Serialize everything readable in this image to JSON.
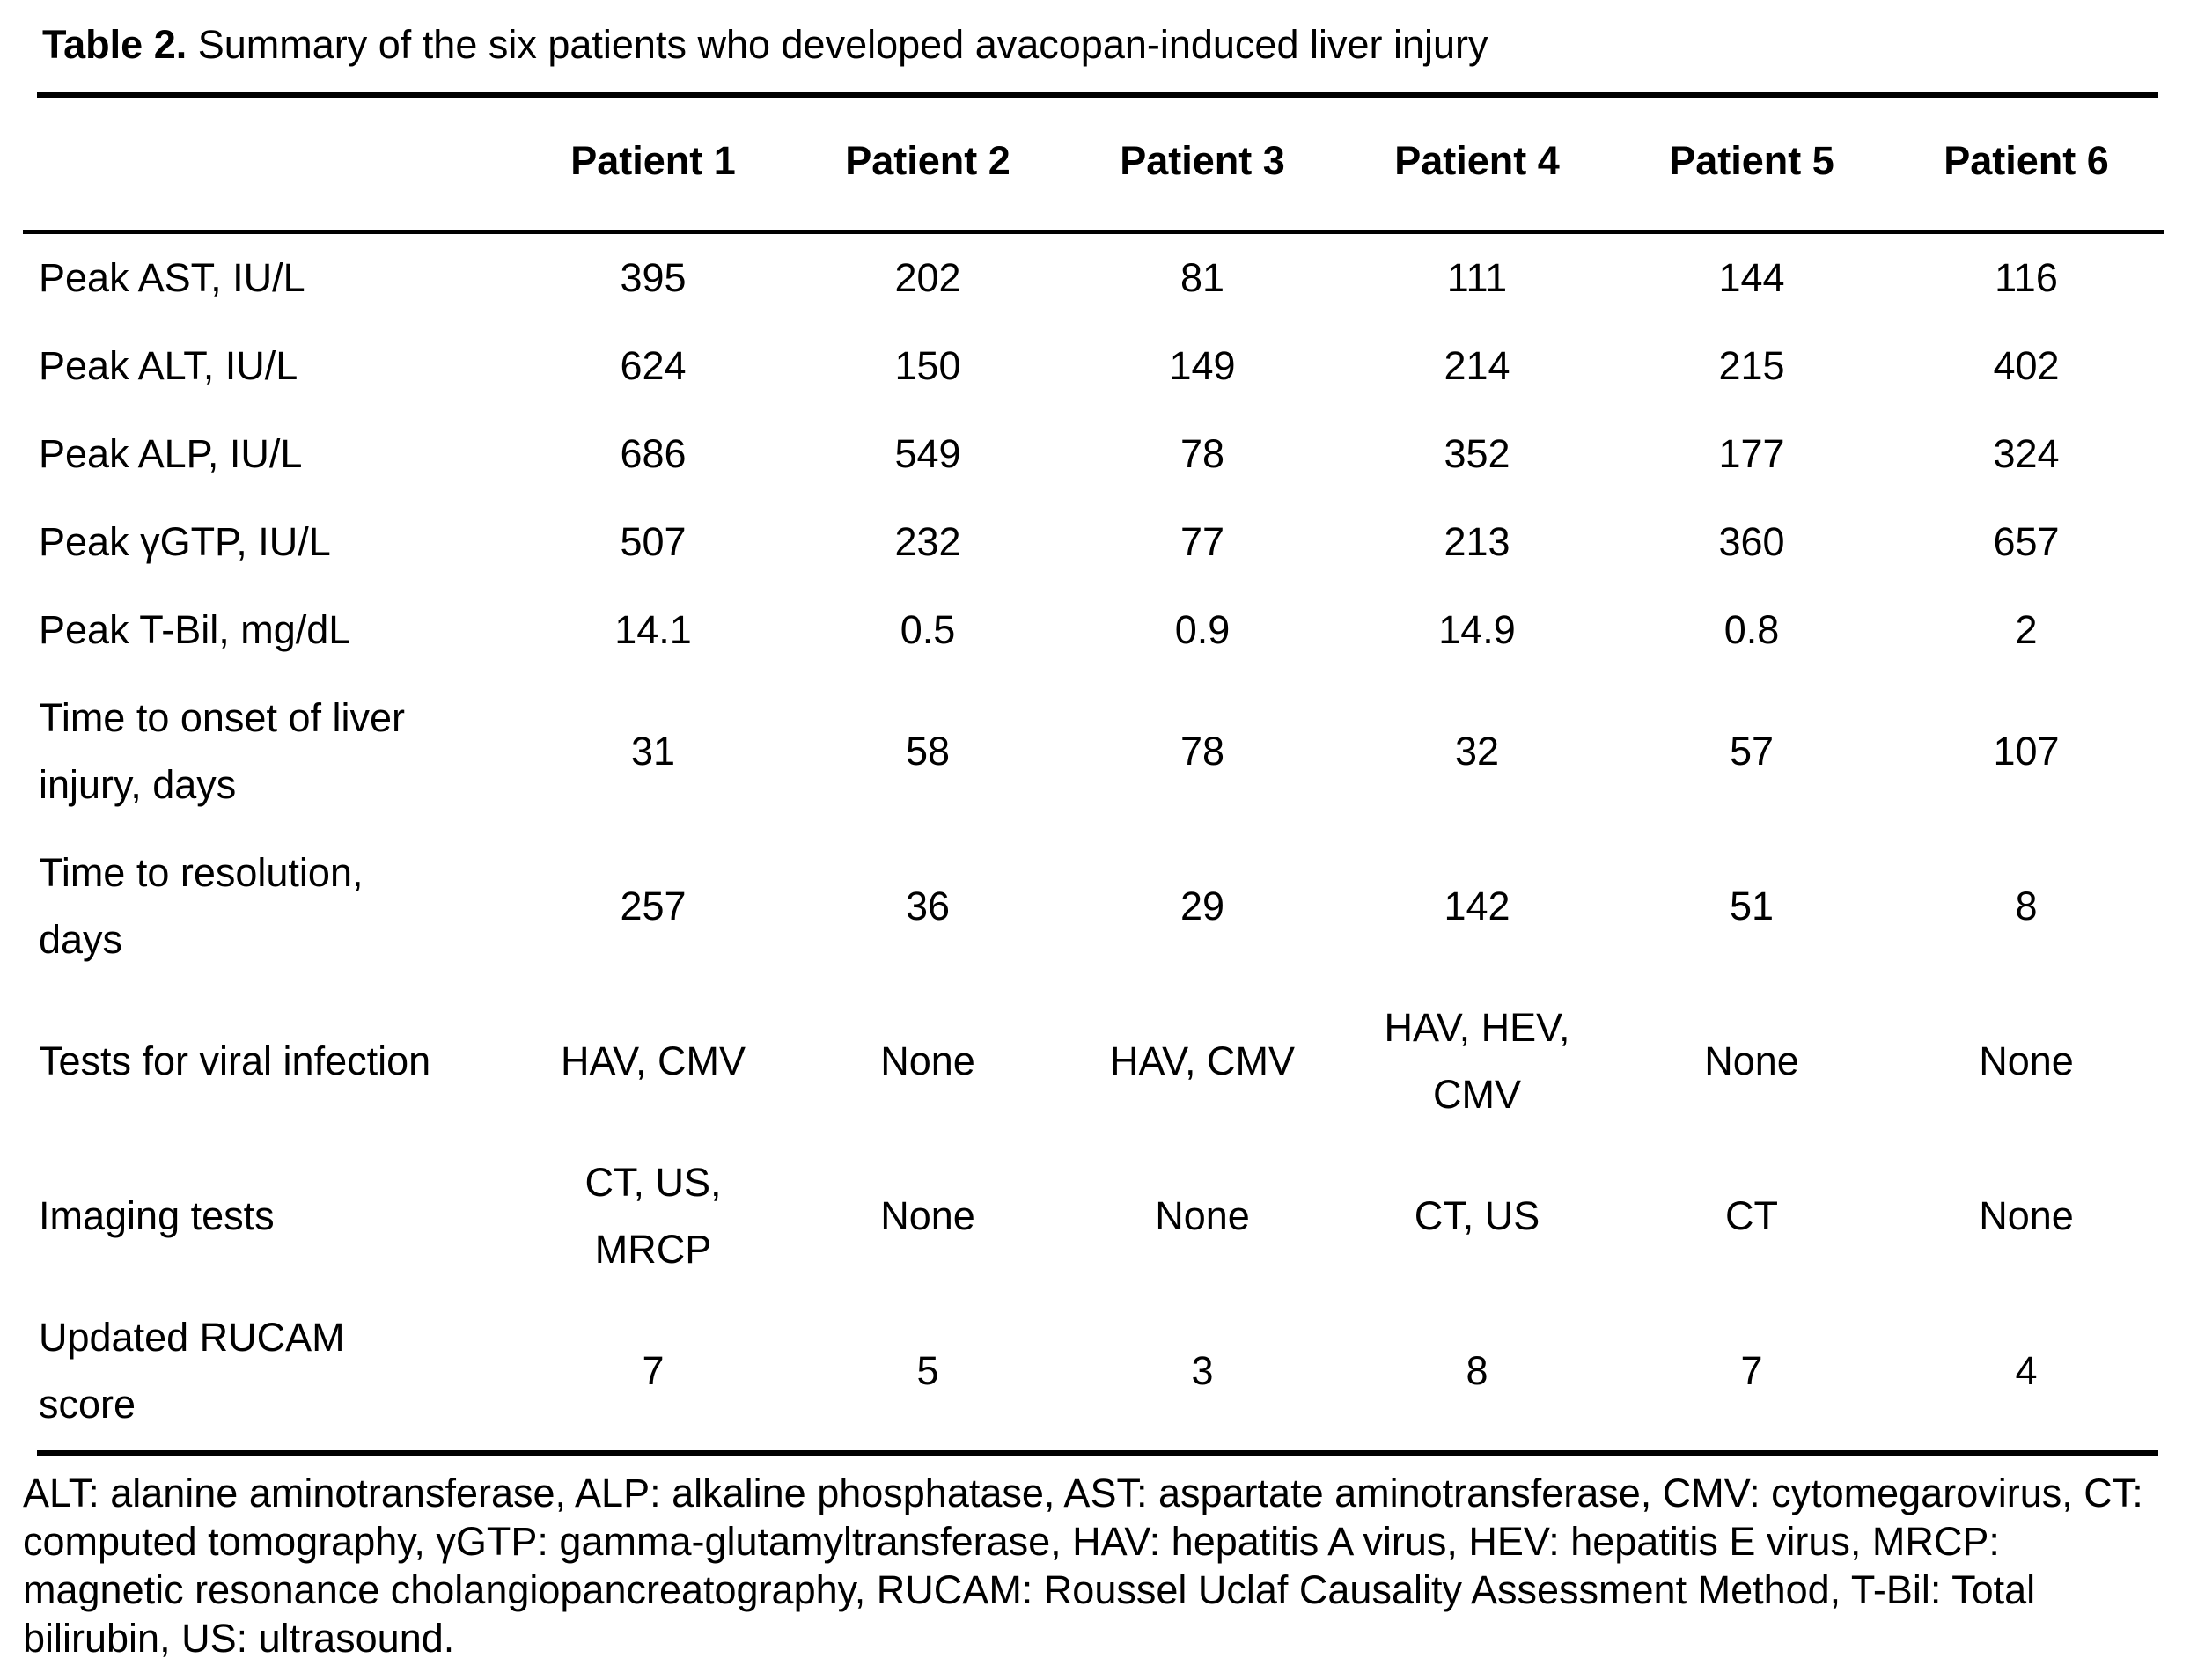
{
  "title": {
    "label": "Table 2.",
    "caption": " Summary of the six patients who developed avacopan-induced liver injury"
  },
  "table": {
    "columns": [
      "Patient 1",
      "Patient 2",
      "Patient 3",
      "Patient 4",
      "Patient 5",
      "Patient 6"
    ],
    "rows": [
      {
        "label": "Peak AST, IU/L",
        "values": [
          "395",
          "202",
          "81",
          "111",
          "144",
          "116"
        ]
      },
      {
        "label": "Peak ALT, IU/L",
        "values": [
          "624",
          "150",
          "149",
          "214",
          "215",
          "402"
        ]
      },
      {
        "label": "Peak ALP, IU/L",
        "values": [
          "686",
          "549",
          "78",
          "352",
          "177",
          "324"
        ]
      },
      {
        "label": "Peak γGTP, IU/L",
        "values": [
          "507",
          "232",
          "77",
          "213",
          "360",
          "657"
        ]
      },
      {
        "label": "Peak T-Bil, mg/dL",
        "values": [
          "14.1",
          "0.5",
          "0.9",
          "14.9",
          "0.8",
          "2"
        ]
      },
      {
        "label": "Time to onset of liver injury, days",
        "values": [
          "31",
          "58",
          "78",
          "32",
          "57",
          "107"
        ]
      },
      {
        "label": "Time to resolution, days",
        "values": [
          "257",
          "36",
          "29",
          "142",
          "51",
          "8"
        ]
      },
      {
        "label": "Tests for viral infection",
        "values": [
          "HAV, CMV",
          "None",
          "HAV, CMV",
          "HAV, HEV, CMV",
          "None",
          "None"
        ]
      },
      {
        "label": "Imaging tests",
        "values": [
          "CT, US, MRCP",
          "None",
          "None",
          "CT, US",
          "CT",
          "None"
        ]
      },
      {
        "label": "Updated RUCAM score",
        "values": [
          "7",
          "5",
          "3",
          "8",
          "7",
          "4"
        ]
      }
    ]
  },
  "footnote": "ALT: alanine aminotransferase, ALP: alkaline phosphatase, AST: aspartate aminotransferase, CMV: cytomegarovirus, CT: computed tomography, γGTP: gamma-glutamyltransferase, HAV: hepatitis A virus, HEV: hepatitis E virus, MRCP: magnetic resonance cholangiopancreatography, RUCAM: Roussel Uclaf Causality Assessment Method, T-Bil: Total bilirubin, US: ultrasound.",
  "colors": {
    "text": "#000000",
    "background": "#ffffff",
    "rule": "#000000"
  }
}
